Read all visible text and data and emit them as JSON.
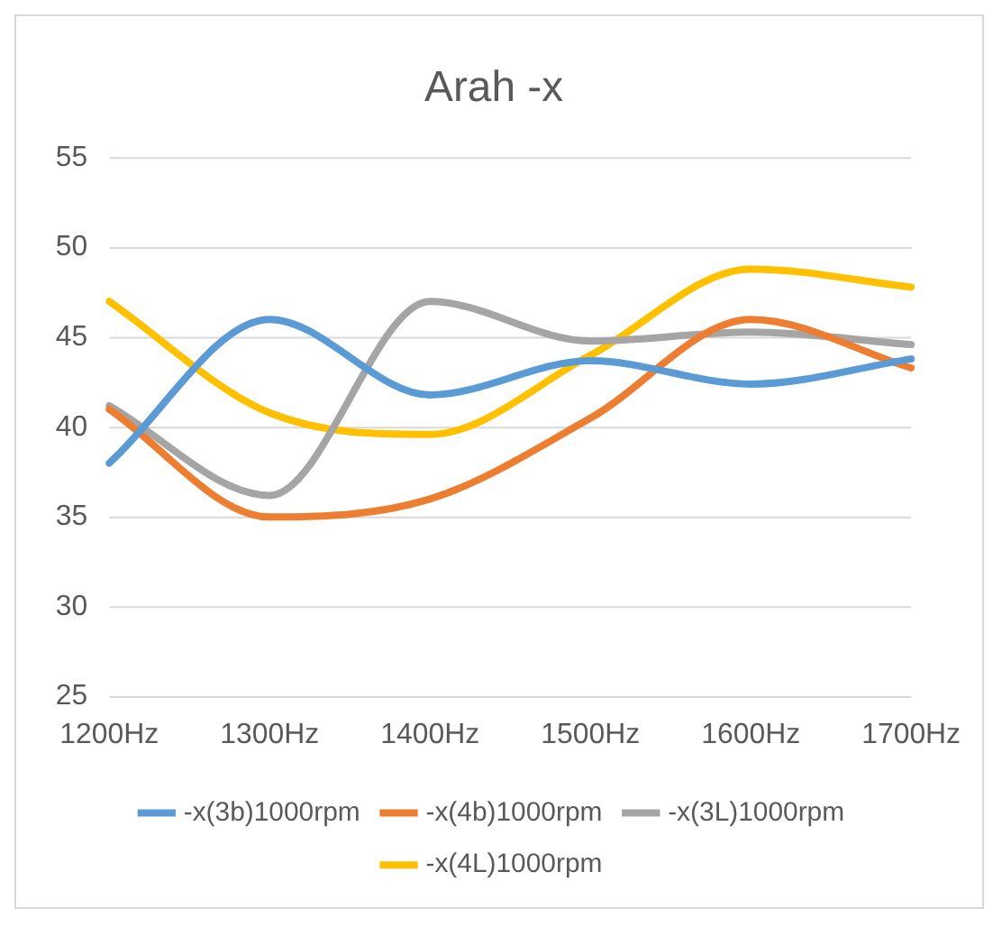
{
  "chart_data": {
    "type": "line",
    "title": "Arah -x",
    "categories": [
      "1200Hz",
      "1300Hz",
      "1400Hz",
      "1500Hz",
      "1600Hz",
      "1700Hz"
    ],
    "series": [
      {
        "name": "-x(3b)1000rpm",
        "color": "#5b9bd5",
        "values": [
          38.0,
          46.0,
          41.8,
          43.7,
          42.4,
          43.8
        ]
      },
      {
        "name": "-x(4b)1000rpm",
        "color": "#ed7d31",
        "values": [
          41.0,
          35.0,
          36.0,
          40.5,
          46.0,
          43.3
        ]
      },
      {
        "name": "-x(3L)1000rpm",
        "color": "#a5a5a5",
        "values": [
          41.2,
          36.2,
          47.0,
          44.8,
          45.3,
          44.6
        ]
      },
      {
        "name": "-x(4L)1000rpm",
        "color": "#ffc000",
        "values": [
          47.0,
          40.8,
          39.6,
          44.0,
          48.8,
          47.8
        ]
      }
    ],
    "ylim": [
      25,
      55
    ],
    "yticks": [
      25,
      30,
      35,
      40,
      45,
      50,
      55
    ],
    "grid": "y",
    "legend": "bottom",
    "marker": "none",
    "line_style": "solid"
  }
}
